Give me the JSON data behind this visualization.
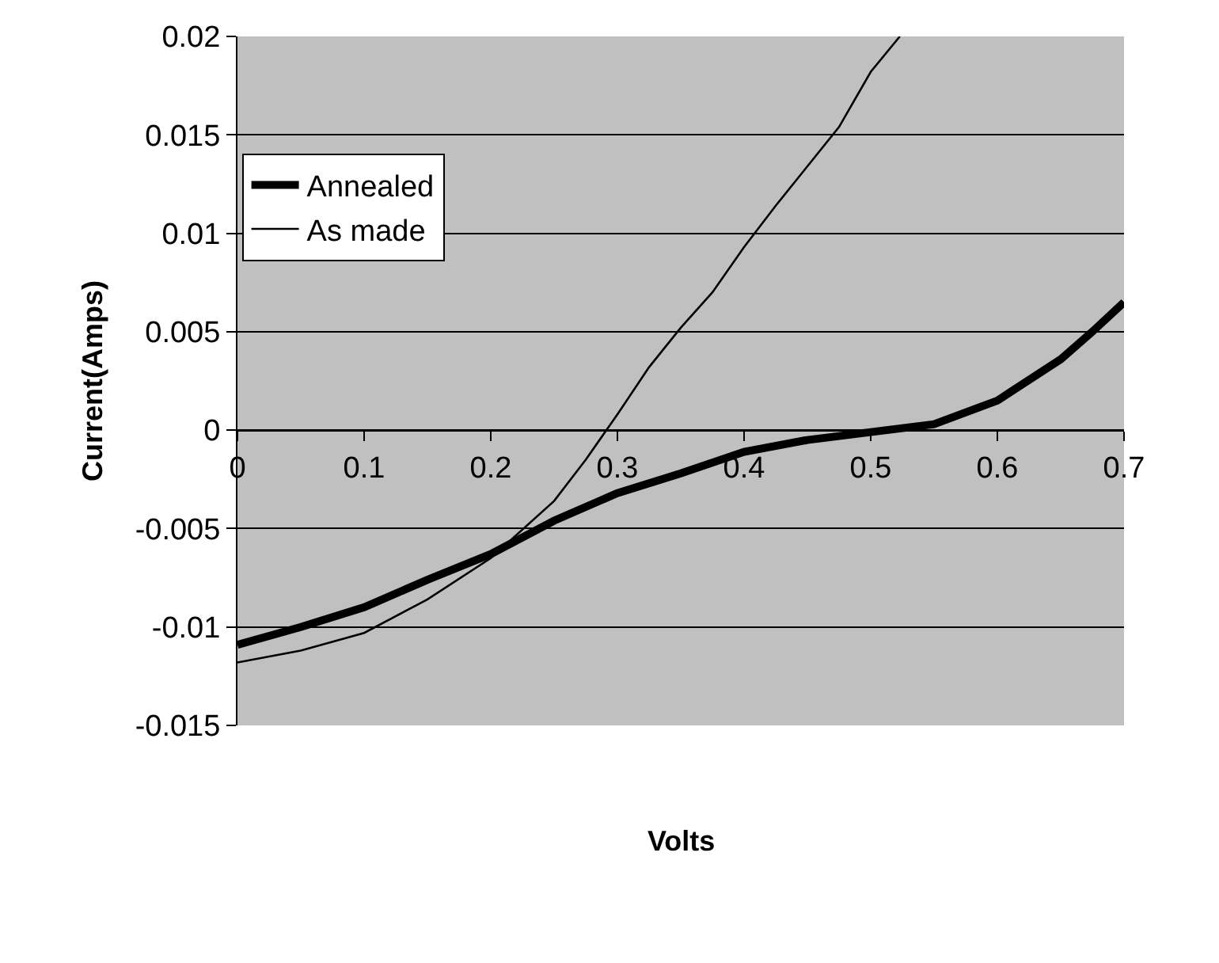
{
  "chart_data": {
    "type": "line",
    "xlabel": "Volts",
    "ylabel": "Current(Amps)",
    "xlim": [
      0,
      0.7
    ],
    "xticks": [
      0,
      0.1,
      0.2,
      0.3,
      0.4,
      0.5,
      0.6,
      0.7
    ],
    "ylim": [
      -0.015,
      0.02
    ],
    "yticks": [
      -0.015,
      -0.01,
      -0.005,
      0,
      0.005,
      0.01,
      0.015,
      0.02
    ],
    "grid": "y",
    "legend": "top left",
    "marker": "none",
    "series": [
      {
        "name": "Annealed",
        "color": "#000000",
        "x": [
          0,
          0.05,
          0.1,
          0.15,
          0.2,
          0.25,
          0.3,
          0.35,
          0.4,
          0.45,
          0.5,
          0.55,
          0.6,
          0.65,
          0.675,
          0.7
        ],
        "values": [
          -0.0109,
          -0.01,
          -0.009,
          -0.0076,
          -0.0063,
          -0.0046,
          -0.0032,
          -0.0022,
          -0.0011,
          -0.0005,
          -0.0001,
          0.0003,
          0.0015,
          0.0036,
          0.005,
          0.0065
        ]
      },
      {
        "name": "As made",
        "color": "#000000",
        "x": [
          0,
          0.05,
          0.1,
          0.15,
          0.2,
          0.25,
          0.275,
          0.3,
          0.325,
          0.35,
          0.375,
          0.4,
          0.425,
          0.45,
          0.475,
          0.5,
          0.523
        ],
        "values": [
          -0.0118,
          -0.0112,
          -0.0103,
          -0.0086,
          -0.0065,
          -0.0036,
          -0.0015,
          0.0008,
          0.0032,
          0.0052,
          0.007,
          0.0093,
          0.0114,
          0.0134,
          0.0154,
          0.0182,
          0.02
        ]
      }
    ]
  }
}
